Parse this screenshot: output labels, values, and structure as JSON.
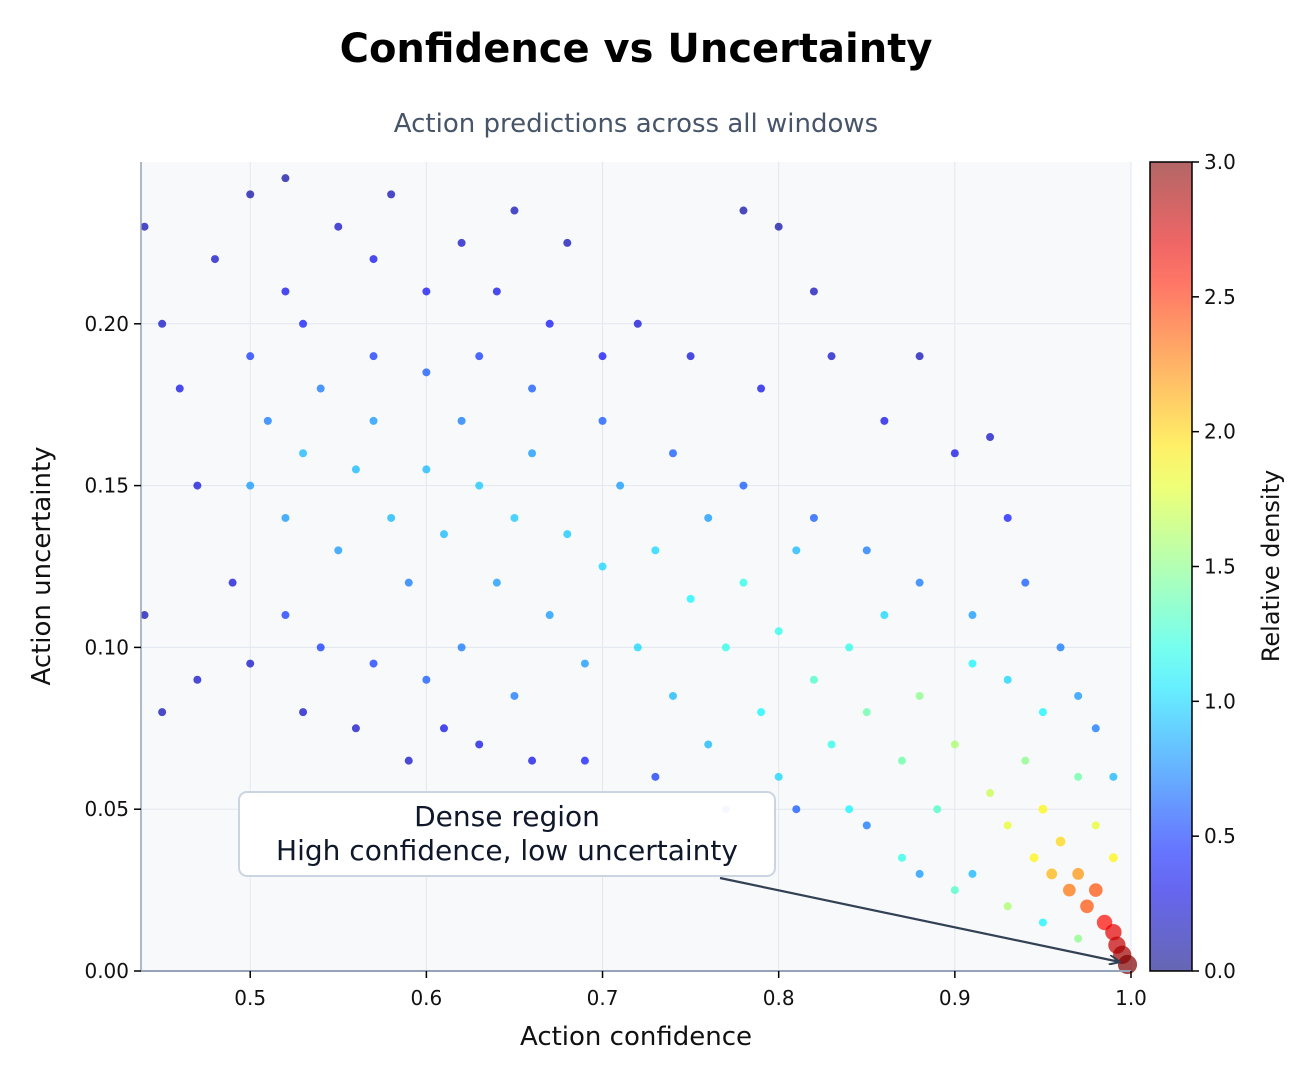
{
  "chart_data": {
    "type": "scatter",
    "title": "Confidence vs Uncertainty",
    "subtitle": "Action predictions across all windows",
    "xlabel": "Action confidence",
    "ylabel": "Action uncertainty",
    "xlim": [
      0.438,
      1.0
    ],
    "ylim": [
      0,
      0.25
    ],
    "xticks": [
      "0.5",
      "0.6",
      "0.7",
      "0.8",
      "0.9",
      "1.0"
    ],
    "yticks": [
      "0.00",
      "0.05",
      "0.10",
      "0.15",
      "0.20"
    ],
    "grid": true,
    "colorbar": {
      "label": "Relative density",
      "colormap": "jet",
      "range": [
        0,
        3.0
      ],
      "ticks": [
        "0.0",
        "0.5",
        "1.0",
        "1.5",
        "2.0",
        "2.5",
        "3.0"
      ]
    },
    "annotation": {
      "line1": "Dense region",
      "line2": "High confidence, low uncertainty",
      "arrow_target": [
        0.995,
        0.003
      ]
    },
    "colors": {
      "background": "#f8f9fb",
      "spine": "#94a3b8",
      "arrow": "#334155"
    },
    "points_note_fields": [
      "x",
      "y",
      "density"
    ],
    "points": [
      [
        0.44,
        0.23,
        0.15
      ],
      [
        0.45,
        0.2,
        0.2
      ],
      [
        0.46,
        0.18,
        0.3
      ],
      [
        0.44,
        0.11,
        0.15
      ],
      [
        0.45,
        0.08,
        0.15
      ],
      [
        0.47,
        0.09,
        0.2
      ],
      [
        0.48,
        0.22,
        0.2
      ],
      [
        0.47,
        0.15,
        0.25
      ],
      [
        0.49,
        0.12,
        0.25
      ],
      [
        0.5,
        0.24,
        0.1
      ],
      [
        0.5,
        0.095,
        0.2
      ],
      [
        0.52,
        0.245,
        0.1
      ],
      [
        0.52,
        0.21,
        0.3
      ],
      [
        0.53,
        0.08,
        0.2
      ],
      [
        0.55,
        0.23,
        0.2
      ],
      [
        0.56,
        0.075,
        0.2
      ],
      [
        0.57,
        0.22,
        0.3
      ],
      [
        0.58,
        0.24,
        0.15
      ],
      [
        0.59,
        0.065,
        0.2
      ],
      [
        0.6,
        0.21,
        0.35
      ],
      [
        0.61,
        0.075,
        0.3
      ],
      [
        0.62,
        0.225,
        0.2
      ],
      [
        0.63,
        0.07,
        0.3
      ],
      [
        0.64,
        0.21,
        0.3
      ],
      [
        0.65,
        0.235,
        0.15
      ],
      [
        0.66,
        0.065,
        0.3
      ],
      [
        0.67,
        0.2,
        0.35
      ],
      [
        0.68,
        0.225,
        0.15
      ],
      [
        0.69,
        0.065,
        0.4
      ],
      [
        0.7,
        0.19,
        0.35
      ],
      [
        0.72,
        0.2,
        0.25
      ],
      [
        0.73,
        0.06,
        0.5
      ],
      [
        0.75,
        0.19,
        0.25
      ],
      [
        0.77,
        0.05,
        0.6
      ],
      [
        0.78,
        0.235,
        0.1
      ],
      [
        0.79,
        0.18,
        0.3
      ],
      [
        0.8,
        0.23,
        0.1
      ],
      [
        0.81,
        0.05,
        0.6
      ],
      [
        0.82,
        0.21,
        0.15
      ],
      [
        0.83,
        0.19,
        0.2
      ],
      [
        0.85,
        0.045,
        0.7
      ],
      [
        0.86,
        0.17,
        0.3
      ],
      [
        0.88,
        0.19,
        0.15
      ],
      [
        0.88,
        0.03,
        0.8
      ],
      [
        0.9,
        0.16,
        0.3
      ],
      [
        0.91,
        0.03,
        0.9
      ],
      [
        0.92,
        0.165,
        0.2
      ],
      [
        0.93,
        0.14,
        0.4
      ],
      [
        0.94,
        0.12,
        0.6
      ],
      [
        0.96,
        0.1,
        0.7
      ],
      [
        0.97,
        0.085,
        0.8
      ],
      [
        0.98,
        0.075,
        0.7
      ],
      [
        0.99,
        0.06,
        0.9
      ],
      [
        0.95,
        0.015,
        1.1
      ],
      [
        0.97,
        0.01,
        1.5
      ],
      [
        0.52,
        0.11,
        0.5
      ],
      [
        0.54,
        0.1,
        0.5
      ],
      [
        0.57,
        0.095,
        0.5
      ],
      [
        0.6,
        0.09,
        0.6
      ],
      [
        0.62,
        0.1,
        0.7
      ],
      [
        0.65,
        0.085,
        0.7
      ],
      [
        0.5,
        0.19,
        0.5
      ],
      [
        0.53,
        0.2,
        0.4
      ],
      [
        0.57,
        0.19,
        0.5
      ],
      [
        0.6,
        0.185,
        0.6
      ],
      [
        0.63,
        0.19,
        0.5
      ],
      [
        0.66,
        0.18,
        0.6
      ],
      [
        0.7,
        0.17,
        0.6
      ],
      [
        0.74,
        0.16,
        0.6
      ],
      [
        0.78,
        0.15,
        0.6
      ],
      [
        0.82,
        0.14,
        0.6
      ],
      [
        0.85,
        0.13,
        0.7
      ],
      [
        0.88,
        0.12,
        0.7
      ],
      [
        0.91,
        0.11,
        0.8
      ],
      [
        0.93,
        0.09,
        1.0
      ],
      [
        0.95,
        0.08,
        1.1
      ],
      [
        0.97,
        0.06,
        1.4
      ],
      [
        0.98,
        0.045,
        1.8
      ],
      [
        0.99,
        0.035,
        1.9
      ],
      [
        0.87,
        0.035,
        1.2
      ],
      [
        0.9,
        0.025,
        1.3
      ],
      [
        0.93,
        0.02,
        1.6
      ],
      [
        0.76,
        0.07,
        0.9
      ],
      [
        0.8,
        0.06,
        1.0
      ],
      [
        0.84,
        0.05,
        1.1
      ],
      [
        0.5,
        0.15,
        0.8
      ],
      [
        0.51,
        0.17,
        0.7
      ],
      [
        0.52,
        0.14,
        0.8
      ],
      [
        0.53,
        0.16,
        0.9
      ],
      [
        0.54,
        0.18,
        0.7
      ],
      [
        0.55,
        0.13,
        0.8
      ],
      [
        0.56,
        0.155,
        0.9
      ],
      [
        0.57,
        0.17,
        0.8
      ],
      [
        0.58,
        0.14,
        0.9
      ],
      [
        0.59,
        0.12,
        0.7
      ],
      [
        0.6,
        0.155,
        0.9
      ],
      [
        0.61,
        0.135,
        0.9
      ],
      [
        0.62,
        0.17,
        0.7
      ],
      [
        0.63,
        0.15,
        0.95
      ],
      [
        0.64,
        0.12,
        0.8
      ],
      [
        0.65,
        0.14,
        0.95
      ],
      [
        0.66,
        0.16,
        0.8
      ],
      [
        0.67,
        0.11,
        0.8
      ],
      [
        0.68,
        0.135,
        0.95
      ],
      [
        0.69,
        0.095,
        0.8
      ],
      [
        0.7,
        0.125,
        1.0
      ],
      [
        0.71,
        0.15,
        0.8
      ],
      [
        0.72,
        0.1,
        1.0
      ],
      [
        0.73,
        0.13,
        1.0
      ],
      [
        0.74,
        0.085,
        0.9
      ],
      [
        0.75,
        0.115,
        1.1
      ],
      [
        0.76,
        0.14,
        0.8
      ],
      [
        0.77,
        0.1,
        1.2
      ],
      [
        0.78,
        0.12,
        1.2
      ],
      [
        0.79,
        0.08,
        1.1
      ],
      [
        0.8,
        0.105,
        1.2
      ],
      [
        0.81,
        0.13,
        0.9
      ],
      [
        0.82,
        0.09,
        1.3
      ],
      [
        0.83,
        0.07,
        1.2
      ],
      [
        0.84,
        0.1,
        1.2
      ],
      [
        0.85,
        0.08,
        1.4
      ],
      [
        0.86,
        0.11,
        1.0
      ],
      [
        0.87,
        0.065,
        1.4
      ],
      [
        0.88,
        0.085,
        1.5
      ],
      [
        0.89,
        0.05,
        1.3
      ],
      [
        0.9,
        0.07,
        1.6
      ],
      [
        0.91,
        0.095,
        1.1
      ],
      [
        0.92,
        0.055,
        1.7
      ],
      [
        0.93,
        0.045,
        1.8
      ],
      [
        0.94,
        0.065,
        1.5
      ],
      [
        0.945,
        0.035,
        1.9
      ],
      [
        0.95,
        0.05,
        1.9
      ],
      [
        0.955,
        0.03,
        2.1
      ],
      [
        0.96,
        0.04,
        2.0
      ],
      [
        0.965,
        0.025,
        2.3
      ],
      [
        0.97,
        0.03,
        2.2
      ],
      [
        0.975,
        0.02,
        2.4
      ],
      [
        0.98,
        0.025,
        2.4
      ],
      [
        0.985,
        0.015,
        2.6
      ],
      [
        0.99,
        0.012,
        2.7
      ],
      [
        0.992,
        0.008,
        2.8
      ],
      [
        0.995,
        0.005,
        2.9
      ],
      [
        0.998,
        0.002,
        3.0
      ]
    ]
  }
}
